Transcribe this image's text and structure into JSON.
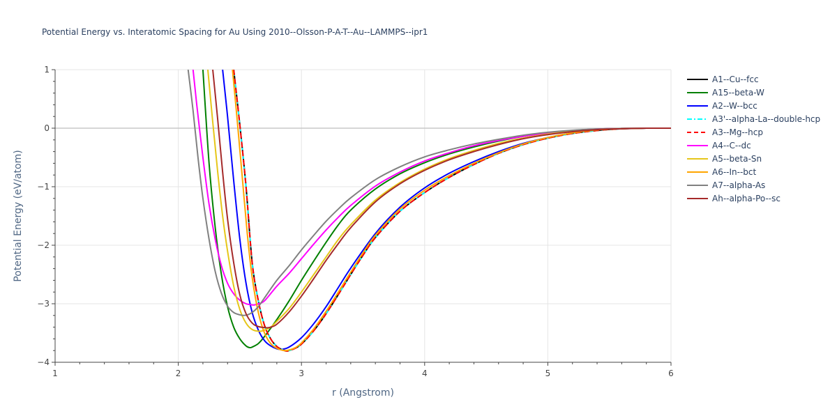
{
  "chart_data": {
    "type": "line",
    "title": "Potential Energy vs. Interatomic Spacing for Au Using 2010--Olsson-P-A-T--Au--LAMMPS--ipr1",
    "xlabel": "r (Angstrom)",
    "ylabel": "Potential Energy (eV/atom)",
    "xlim": [
      1,
      6
    ],
    "ylim": [
      -4,
      1
    ],
    "xticks": [
      1,
      2,
      3,
      4,
      5,
      6
    ],
    "yticks": [
      1,
      0,
      -1,
      -2,
      -3,
      -4
    ],
    "grid": true,
    "legend_position": "right",
    "series": [
      {
        "name": "A1--Cu--fcc",
        "color": "#000000",
        "dash": "solid",
        "r_min": 2.88,
        "e_min": -3.81,
        "x": [
          2.45,
          2.5,
          2.55,
          2.6,
          2.65,
          2.7,
          2.75,
          2.8,
          2.85,
          2.88,
          2.9,
          2.95,
          3.0,
          3.1,
          3.2,
          3.3,
          3.4,
          3.5,
          3.6,
          3.8,
          4.0,
          4.2,
          4.4,
          4.6,
          4.8,
          5.0,
          5.2,
          5.4,
          5.6,
          5.8,
          6.0
        ],
        "y": [
          1.0,
          0.05,
          -1.0,
          -2.3,
          -2.95,
          -3.37,
          -3.6,
          -3.73,
          -3.79,
          -3.81,
          -3.8,
          -3.76,
          -3.69,
          -3.46,
          -3.17,
          -2.84,
          -2.5,
          -2.17,
          -1.87,
          -1.42,
          -1.1,
          -0.84,
          -0.62,
          -0.43,
          -0.28,
          -0.17,
          -0.09,
          -0.04,
          -0.01,
          0.0,
          0.0
        ]
      },
      {
        "name": "A15--beta-W",
        "color": "#008000",
        "dash": "solid",
        "r_min": 2.58,
        "e_min": -3.75,
        "x": [
          2.2,
          2.25,
          2.3,
          2.35,
          2.4,
          2.45,
          2.5,
          2.55,
          2.58,
          2.6,
          2.65,
          2.7,
          2.8,
          2.9,
          3.0,
          3.1,
          3.2,
          3.3,
          3.4,
          3.6,
          3.8,
          4.0,
          4.2,
          4.4,
          4.6,
          4.8,
          5.0,
          5.2,
          5.4,
          5.6,
          5.8,
          6.0
        ],
        "y": [
          1.0,
          -0.6,
          -1.7,
          -2.5,
          -3.05,
          -3.4,
          -3.6,
          -3.72,
          -3.75,
          -3.74,
          -3.68,
          -3.56,
          -3.27,
          -2.95,
          -2.6,
          -2.27,
          -1.95,
          -1.65,
          -1.4,
          -1.04,
          -0.78,
          -0.59,
          -0.44,
          -0.32,
          -0.22,
          -0.14,
          -0.08,
          -0.04,
          -0.015,
          -0.005,
          0.0,
          0.0
        ]
      },
      {
        "name": "A2--W--bcc",
        "color": "#0000ff",
        "dash": "solid",
        "r_min": 2.84,
        "e_min": -3.78,
        "x": [
          2.36,
          2.4,
          2.45,
          2.5,
          2.55,
          2.6,
          2.65,
          2.7,
          2.75,
          2.8,
          2.84,
          2.9,
          3.0,
          3.1,
          3.2,
          3.3,
          3.4,
          3.6,
          3.8,
          4.0,
          4.2,
          4.4,
          4.6,
          4.8,
          5.0,
          5.2,
          5.4,
          5.6,
          5.8,
          6.0
        ],
        "y": [
          1.0,
          0.2,
          -0.9,
          -1.9,
          -2.65,
          -3.15,
          -3.45,
          -3.63,
          -3.72,
          -3.77,
          -3.78,
          -3.74,
          -3.58,
          -3.34,
          -3.05,
          -2.72,
          -2.39,
          -1.8,
          -1.35,
          -1.02,
          -0.77,
          -0.57,
          -0.4,
          -0.26,
          -0.16,
          -0.08,
          -0.03,
          -0.01,
          0.0,
          0.0
        ]
      },
      {
        "name": "A3'--alpha-La--double-hcp",
        "color": "#00ffff",
        "dash": "dashdot",
        "r_min": 2.88,
        "e_min": -3.81,
        "x": [
          2.45,
          2.5,
          2.55,
          2.6,
          2.65,
          2.7,
          2.75,
          2.8,
          2.85,
          2.88,
          2.9,
          2.95,
          3.0,
          3.1,
          3.2,
          3.3,
          3.4,
          3.5,
          3.6,
          3.8,
          4.0,
          4.2,
          4.4,
          4.6,
          4.8,
          5.0,
          5.2,
          5.4,
          5.6,
          5.8,
          6.0
        ],
        "y": [
          1.0,
          0.05,
          -1.0,
          -2.3,
          -2.95,
          -3.37,
          -3.6,
          -3.73,
          -3.79,
          -3.81,
          -3.8,
          -3.76,
          -3.69,
          -3.46,
          -3.17,
          -2.84,
          -2.5,
          -2.17,
          -1.87,
          -1.42,
          -1.1,
          -0.84,
          -0.62,
          -0.43,
          -0.28,
          -0.17,
          -0.09,
          -0.04,
          -0.01,
          0.0,
          0.0
        ]
      },
      {
        "name": "A3--Mg--hcp",
        "color": "#ff0000",
        "dash": "dash",
        "r_min": 2.88,
        "e_min": -3.81,
        "x": [
          2.45,
          2.5,
          2.55,
          2.6,
          2.65,
          2.7,
          2.75,
          2.8,
          2.85,
          2.88,
          2.9,
          2.95,
          3.0,
          3.1,
          3.2,
          3.3,
          3.4,
          3.5,
          3.6,
          3.8,
          4.0,
          4.2,
          4.4,
          4.6,
          4.8,
          5.0,
          5.2,
          5.4,
          5.6,
          5.8,
          6.0
        ],
        "y": [
          1.0,
          0.05,
          -1.0,
          -2.3,
          -2.95,
          -3.37,
          -3.6,
          -3.73,
          -3.79,
          -3.81,
          -3.8,
          -3.76,
          -3.69,
          -3.46,
          -3.17,
          -2.84,
          -2.5,
          -2.17,
          -1.87,
          -1.42,
          -1.1,
          -0.84,
          -0.62,
          -0.43,
          -0.28,
          -0.17,
          -0.09,
          -0.04,
          -0.01,
          0.0,
          0.0
        ]
      },
      {
        "name": "A4--C--dc",
        "color": "#ff00ff",
        "dash": "solid",
        "r_min": 2.62,
        "e_min": -3.02,
        "x": [
          2.12,
          2.15,
          2.2,
          2.25,
          2.3,
          2.35,
          2.4,
          2.45,
          2.5,
          2.55,
          2.6,
          2.62,
          2.65,
          2.7,
          2.8,
          2.9,
          3.0,
          3.1,
          3.2,
          3.3,
          3.4,
          3.6,
          3.8,
          4.0,
          4.2,
          4.4,
          4.6,
          4.8,
          5.0,
          5.2,
          5.4,
          5.6,
          5.8,
          6.0
        ],
        "y": [
          1.0,
          0.4,
          -0.5,
          -1.3,
          -1.9,
          -2.35,
          -2.65,
          -2.83,
          -2.94,
          -3.0,
          -3.02,
          -3.02,
          -3.0,
          -2.95,
          -2.7,
          -2.48,
          -2.23,
          -1.98,
          -1.74,
          -1.52,
          -1.32,
          -0.99,
          -0.75,
          -0.56,
          -0.42,
          -0.3,
          -0.21,
          -0.14,
          -0.08,
          -0.04,
          -0.015,
          -0.005,
          0.0,
          0.0
        ]
      },
      {
        "name": "A5--beta-Sn",
        "color": "#e6c619",
        "dash": "solid",
        "r_min": 2.66,
        "e_min": -3.47,
        "x": [
          2.24,
          2.28,
          2.32,
          2.36,
          2.4,
          2.45,
          2.5,
          2.55,
          2.6,
          2.66,
          2.7,
          2.75,
          2.8,
          2.9,
          3.0,
          3.1,
          3.2,
          3.3,
          3.4,
          3.6,
          3.8,
          4.0,
          4.2,
          4.4,
          4.6,
          4.8,
          5.0,
          5.2,
          5.4,
          5.6,
          5.8,
          6.0
        ],
        "y": [
          1.0,
          0.1,
          -0.75,
          -1.5,
          -2.1,
          -2.7,
          -3.1,
          -3.33,
          -3.44,
          -3.47,
          -3.45,
          -3.4,
          -3.3,
          -3.08,
          -2.8,
          -2.5,
          -2.2,
          -1.9,
          -1.65,
          -1.23,
          -0.93,
          -0.7,
          -0.52,
          -0.38,
          -0.26,
          -0.17,
          -0.1,
          -0.05,
          -0.02,
          -0.005,
          0.0,
          0.0
        ]
      },
      {
        "name": "A6--In--bct",
        "color": "#ffa500",
        "dash": "solid",
        "r_min": 2.86,
        "e_min": -3.8,
        "x": [
          2.44,
          2.48,
          2.52,
          2.56,
          2.6,
          2.65,
          2.7,
          2.75,
          2.8,
          2.86,
          2.9,
          2.95,
          3.0,
          3.1,
          3.2,
          3.3,
          3.4,
          3.5,
          3.6,
          3.8,
          4.0,
          4.2,
          4.4,
          4.6,
          4.8,
          5.0,
          5.2,
          5.4,
          5.6,
          5.8,
          6.0
        ],
        "y": [
          1.0,
          0.1,
          -0.85,
          -1.8,
          -2.55,
          -3.15,
          -3.5,
          -3.68,
          -3.76,
          -3.8,
          -3.79,
          -3.75,
          -3.67,
          -3.43,
          -3.13,
          -2.8,
          -2.46,
          -2.13,
          -1.83,
          -1.38,
          -1.06,
          -0.81,
          -0.6,
          -0.42,
          -0.27,
          -0.16,
          -0.08,
          -0.03,
          -0.01,
          0.0,
          0.0
        ]
      },
      {
        "name": "A7--alpha-As",
        "color": "#808080",
        "dash": "solid",
        "r_min": 2.53,
        "e_min": -3.2,
        "x": [
          2.08,
          2.12,
          2.16,
          2.2,
          2.25,
          2.3,
          2.35,
          2.4,
          2.45,
          2.5,
          2.53,
          2.56,
          2.6,
          2.65,
          2.7,
          2.8,
          2.9,
          3.0,
          3.1,
          3.2,
          3.3,
          3.4,
          3.6,
          3.8,
          4.0,
          4.2,
          4.4,
          4.6,
          4.8,
          5.0,
          5.2,
          5.4,
          5.6,
          5.8,
          6.0
        ],
        "y": [
          1.0,
          0.3,
          -0.5,
          -1.2,
          -1.9,
          -2.45,
          -2.82,
          -3.04,
          -3.15,
          -3.19,
          -3.2,
          -3.19,
          -3.15,
          -3.05,
          -2.9,
          -2.6,
          -2.35,
          -2.08,
          -1.83,
          -1.59,
          -1.38,
          -1.19,
          -0.88,
          -0.66,
          -0.49,
          -0.37,
          -0.27,
          -0.19,
          -0.12,
          -0.07,
          -0.035,
          -0.015,
          -0.005,
          0.0,
          0.0
        ]
      },
      {
        "name": "Ah--alpha-Po--sc",
        "color": "#a52a2a",
        "dash": "solid",
        "r_min": 2.72,
        "e_min": -3.41,
        "x": [
          2.28,
          2.32,
          2.36,
          2.4,
          2.45,
          2.5,
          2.55,
          2.6,
          2.65,
          2.72,
          2.75,
          2.8,
          2.9,
          3.0,
          3.1,
          3.2,
          3.3,
          3.4,
          3.6,
          3.8,
          4.0,
          4.2,
          4.4,
          4.6,
          4.8,
          5.0,
          5.2,
          5.4,
          5.6,
          5.8,
          6.0
        ],
        "y": [
          1.0,
          0.15,
          -0.75,
          -1.55,
          -2.3,
          -2.85,
          -3.17,
          -3.33,
          -3.39,
          -3.41,
          -3.4,
          -3.35,
          -3.14,
          -2.87,
          -2.57,
          -2.26,
          -1.97,
          -1.7,
          -1.26,
          -0.95,
          -0.72,
          -0.54,
          -0.4,
          -0.28,
          -0.18,
          -0.11,
          -0.06,
          -0.025,
          -0.01,
          0.0,
          0.0
        ]
      }
    ]
  }
}
